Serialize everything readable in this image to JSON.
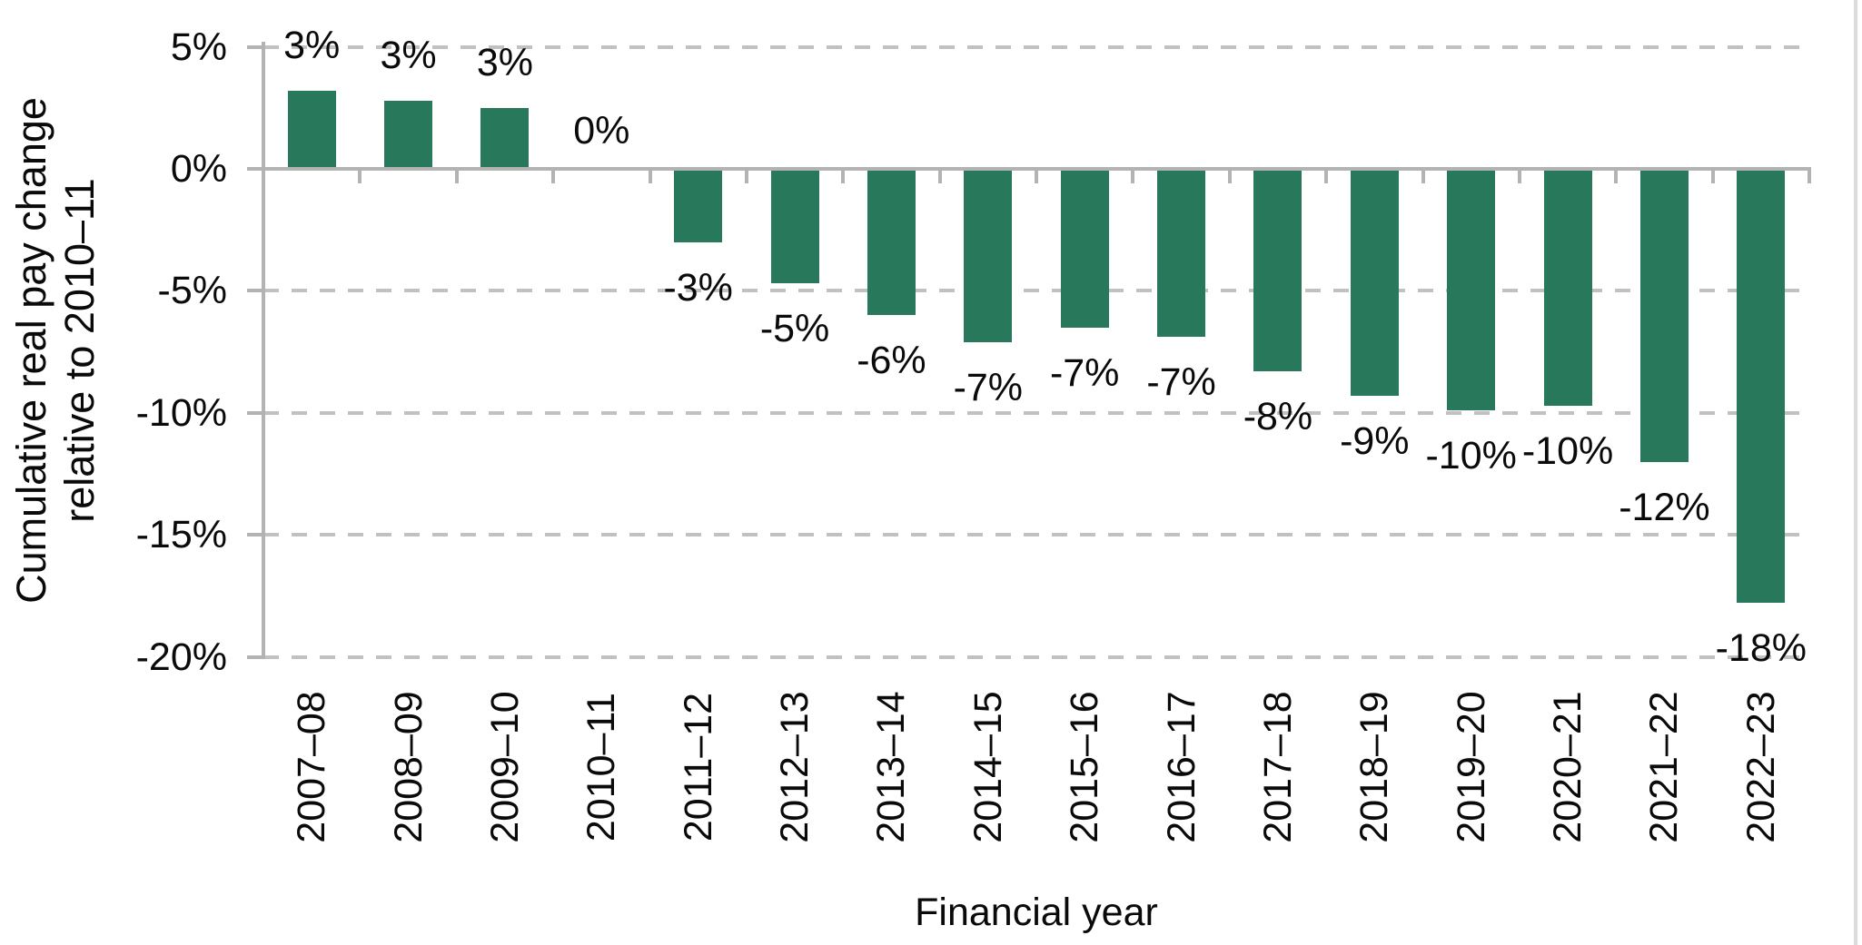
{
  "labels": {
    "y_title_line1": "Cumulative real pay change",
    "y_title_line2": "relative to 2010–11",
    "x_title": "Financial year"
  },
  "colors": {
    "bar": "#28795B",
    "axis": "#b3b3b3",
    "gridline": "#c1c1c1",
    "text": "#0a0a0a"
  },
  "chart_data": {
    "type": "bar",
    "title": "",
    "xlabel": "Financial year",
    "ylabel": "Cumulative real pay change relative to 2010–11",
    "categories": [
      "2007–08",
      "2008–09",
      "2009–10",
      "2010–11",
      "2011–12",
      "2012–13",
      "2013–14",
      "2014–15",
      "2015–16",
      "2016–17",
      "2017–18",
      "2018–19",
      "2019–20",
      "2020–21",
      "2021–22",
      "2022–23"
    ],
    "values": [
      3.2,
      2.8,
      2.5,
      0,
      -3.0,
      -4.7,
      -6.0,
      -7.1,
      -6.5,
      -6.9,
      -8.3,
      -9.3,
      -9.9,
      -9.7,
      -12.0,
      -17.8
    ],
    "bar_labels": [
      "3%",
      "3%",
      "3%",
      "0%",
      "-3%",
      "-5%",
      "-6%",
      "-7%",
      "-7%",
      "-7%",
      "-8%",
      "-9%",
      "-10%",
      "-10%",
      "-12%",
      "-18%"
    ],
    "ylim": [
      -20,
      5
    ],
    "y_tick_values": [
      5,
      0,
      -5,
      -10,
      -15,
      -20
    ],
    "y_tick_labels": [
      "5%",
      "0%",
      "-5%",
      "-10%",
      "-15%",
      "-20%"
    ],
    "grid": "horizontal-dashed",
    "legend_position": "none",
    "bar_color": "#28795B"
  }
}
